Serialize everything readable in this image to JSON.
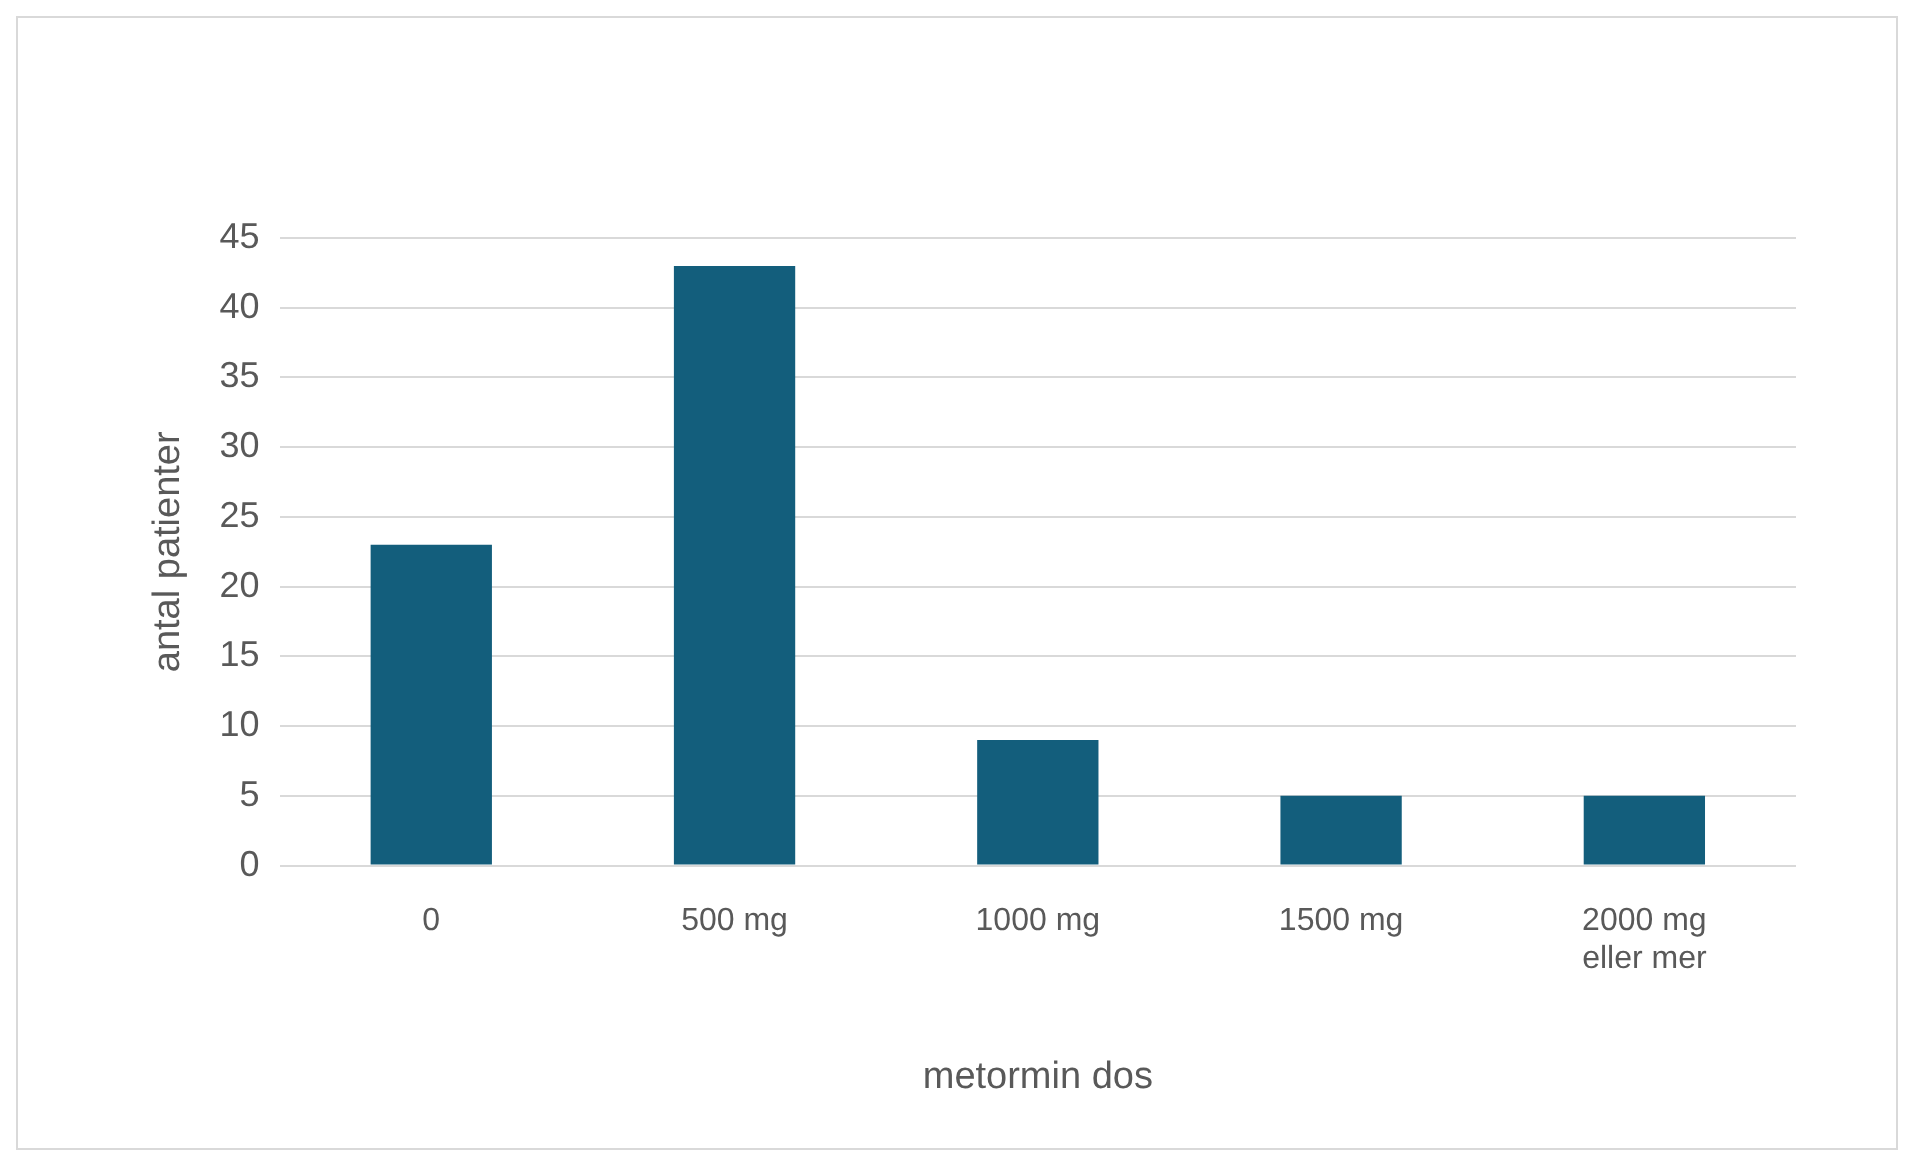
{
  "chart_data": {
    "type": "bar",
    "xlabel": "metormin dos",
    "ylabel": "antal patienter",
    "categories": [
      "0",
      "500 mg",
      "1000 mg",
      "1500 mg",
      "2000 mg eller mer"
    ],
    "values": [
      23,
      43,
      9,
      5,
      5
    ],
    "color": "#135e7c",
    "ylim": [
      0,
      45
    ],
    "yticks": [
      0,
      5,
      10,
      15,
      20,
      25,
      30,
      35,
      40,
      45
    ],
    "grid": "y",
    "legend": false
  }
}
